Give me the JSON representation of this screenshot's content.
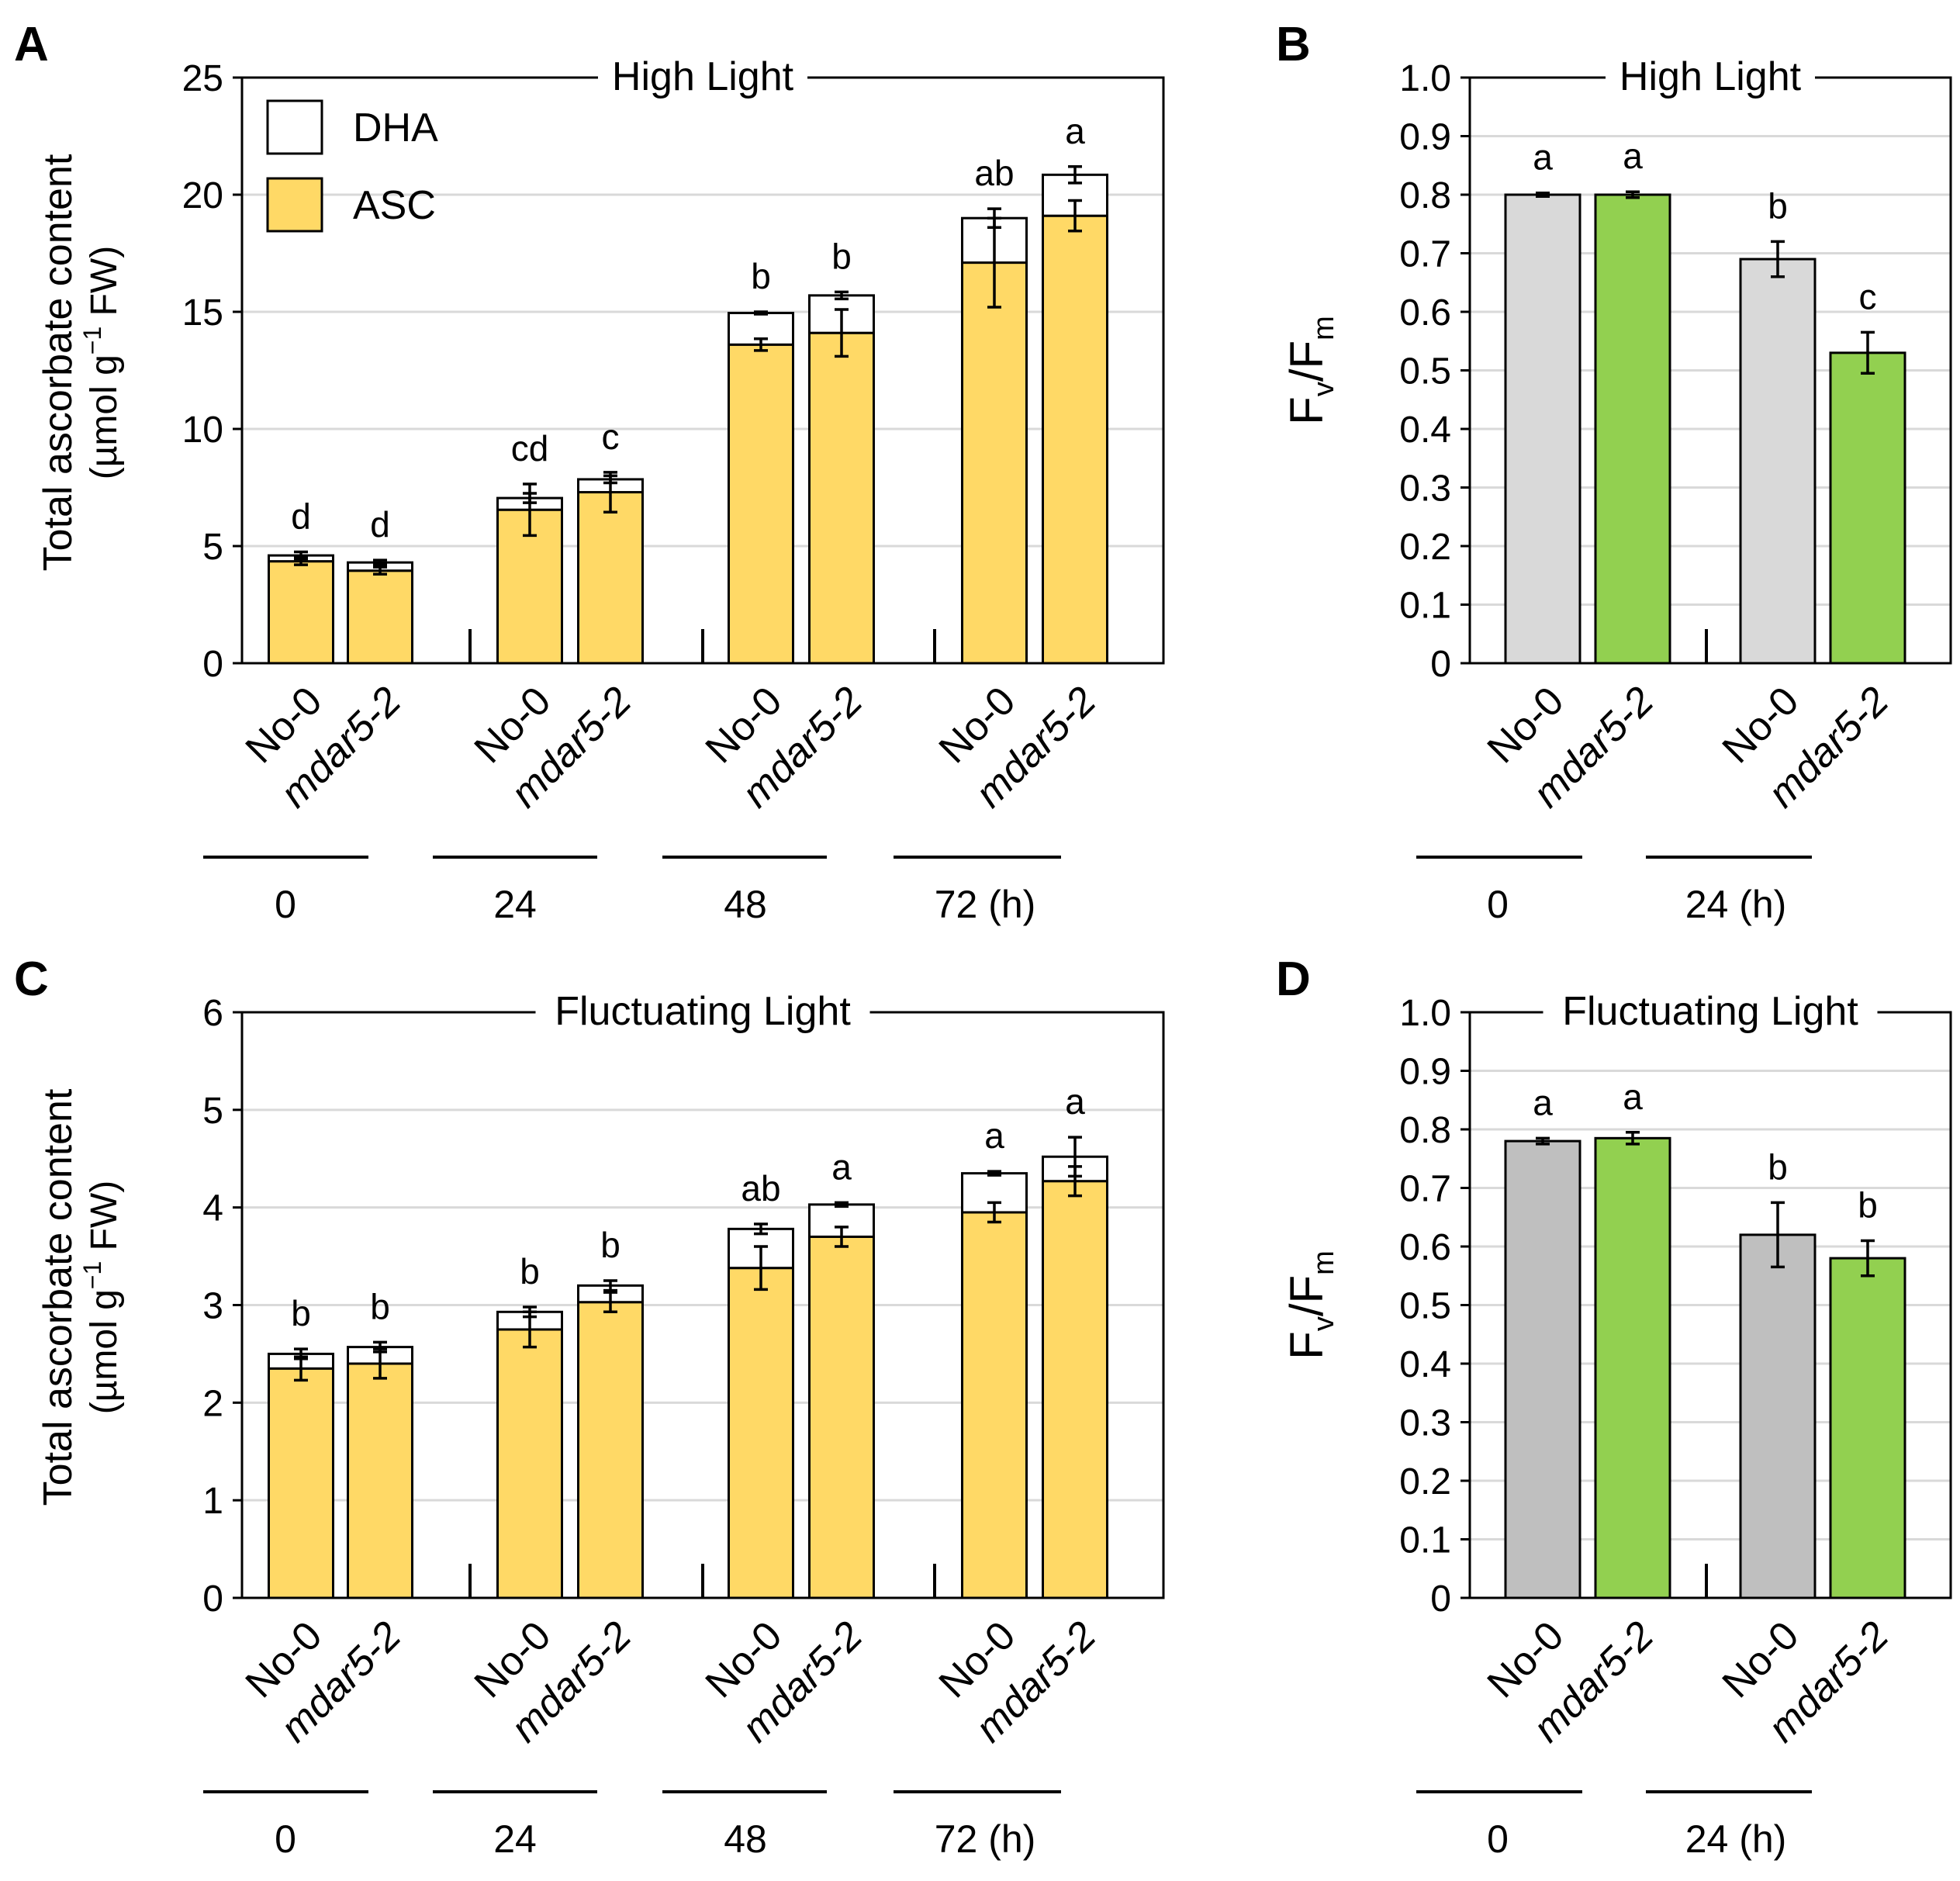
{
  "colors": {
    "asc": "#FFD966",
    "dha": "#FFFFFF",
    "wt_light": "#D9D9D9",
    "wt_dark": "#BFBFBF",
    "mutant": "#92D050",
    "grid": "#D9D9D9",
    "axis": "#000000"
  },
  "chart_data": [
    {
      "panel": "A",
      "type": "bar",
      "stacked": true,
      "title": "High Light",
      "ylabel_line1": "Total ascorbate content",
      "ylabel_line2_prefix": "(µmol g",
      "ylabel_line2_sup": "−1",
      "ylabel_line2_suffix": " FW)",
      "ylim": [
        0,
        25
      ],
      "yticks": [
        "0",
        "5",
        "10",
        "15",
        "20",
        "25"
      ],
      "legend": [
        "DHA",
        "ASC"
      ],
      "legend_position": "top-left",
      "categories": [
        "No-0",
        "mdar5-2",
        "No-0",
        "mdar5-2",
        "No-0",
        "mdar5-2",
        "No-0",
        "mdar5-2"
      ],
      "groups": [
        "0",
        "24",
        "48",
        "72 (h)"
      ],
      "series": [
        {
          "name": "ASC",
          "values": [
            4.35,
            3.95,
            6.55,
            7.3,
            13.6,
            14.1,
            17.1,
            19.1
          ],
          "errors": [
            0.15,
            0.15,
            1.1,
            0.85,
            0.25,
            1.0,
            1.9,
            0.65
          ]
        },
        {
          "name": "DHA",
          "values": [
            0.25,
            0.35,
            0.5,
            0.55,
            1.35,
            1.6,
            1.9,
            1.75
          ],
          "errors": [
            0.15,
            0.1,
            0.2,
            0.15,
            0.05,
            0.15,
            0.4,
            0.35
          ]
        }
      ],
      "significance": [
        "d",
        "d",
        "cd",
        "c",
        "b",
        "b",
        "ab",
        "a"
      ]
    },
    {
      "panel": "B",
      "type": "bar",
      "title": "High Light",
      "ylabel": "Fv/Fm",
      "ylim": [
        0,
        1.0
      ],
      "yticks": [
        "0",
        "0.1",
        "0.2",
        "0.3",
        "0.4",
        "0.5",
        "0.6",
        "0.7",
        "0.8",
        "0.9",
        "1.0"
      ],
      "categories": [
        "No-0",
        "mdar5-2",
        "No-0",
        "mdar5-2"
      ],
      "groups": [
        "0",
        "24 (h)"
      ],
      "values": [
        0.8,
        0.8,
        0.69,
        0.53
      ],
      "errors": [
        0.003,
        0.005,
        0.03,
        0.035
      ],
      "significance": [
        "a",
        "a",
        "b",
        "c"
      ]
    },
    {
      "panel": "C",
      "type": "bar",
      "stacked": true,
      "title": "Fluctuating Light",
      "ylabel_line1": "Total ascorbate content",
      "ylabel_line2_prefix": "(µmol g",
      "ylabel_line2_sup": "−1",
      "ylabel_line2_suffix": " FW)",
      "ylim": [
        0,
        6
      ],
      "yticks": [
        "0",
        "1",
        "2",
        "3",
        "4",
        "5",
        "6"
      ],
      "categories": [
        "No-0",
        "mdar5-2",
        "No-0",
        "mdar5-2",
        "No-0",
        "mdar5-2",
        "No-0",
        "mdar5-2"
      ],
      "groups": [
        "0",
        "24",
        "48",
        "72 (h)"
      ],
      "series": [
        {
          "name": "ASC",
          "values": [
            2.35,
            2.4,
            2.75,
            3.03,
            3.38,
            3.7,
            3.95,
            4.27
          ],
          "errors": [
            0.12,
            0.15,
            0.18,
            0.1,
            0.22,
            0.1,
            0.1,
            0.15
          ]
        },
        {
          "name": "DHA",
          "values": [
            0.15,
            0.17,
            0.18,
            0.17,
            0.4,
            0.33,
            0.4,
            0.25
          ],
          "errors": [
            0.05,
            0.05,
            0.05,
            0.05,
            0.05,
            0.02,
            0.02,
            0.2
          ]
        }
      ],
      "significance": [
        "b",
        "b",
        "b",
        "b",
        "ab",
        "a",
        "a",
        "a"
      ]
    },
    {
      "panel": "D",
      "type": "bar",
      "title": "Fluctuating Light",
      "ylabel": "Fv/Fm",
      "ylim": [
        0,
        1.0
      ],
      "yticks": [
        "0",
        "0.1",
        "0.2",
        "0.3",
        "0.4",
        "0.5",
        "0.6",
        "0.7",
        "0.8",
        "0.9",
        "1.0"
      ],
      "categories": [
        "No-0",
        "mdar5-2",
        "No-0",
        "mdar5-2"
      ],
      "groups": [
        "0",
        "24 (h)"
      ],
      "values": [
        0.78,
        0.785,
        0.62,
        0.58
      ],
      "errors": [
        0.005,
        0.01,
        0.055,
        0.03
      ],
      "significance": [
        "a",
        "a",
        "b",
        "b"
      ]
    }
  ]
}
